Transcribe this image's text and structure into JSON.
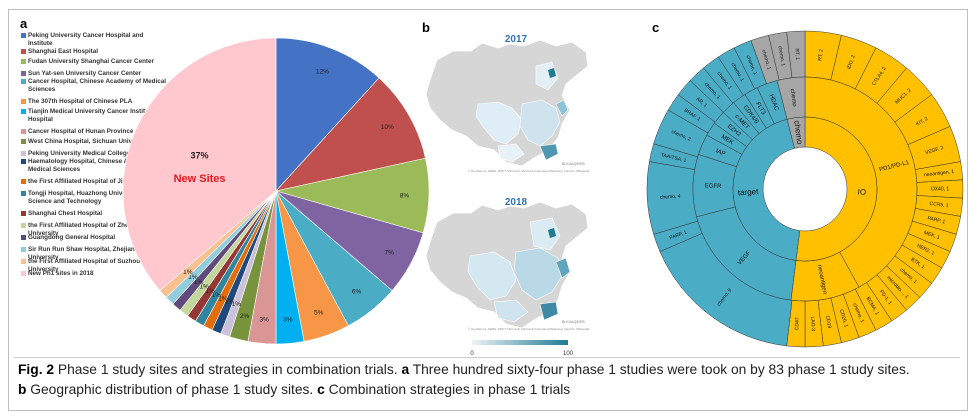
{
  "panels": {
    "a": "a",
    "b": "b",
    "c": "c"
  },
  "panel_a": {
    "legend": [
      {
        "label": "Peking University Cancer Hospital and Institute",
        "color": "#4472c4"
      },
      {
        "label": "Shanghai East Hospital",
        "color": "#c0504d"
      },
      {
        "label": "Fudan University Shanghai Cancer Center",
        "color": "#9bbb59"
      },
      {
        "label": "Sun Yat-sen University Cancer Center",
        "color": "#8064a2"
      },
      {
        "label": "Cancer Hospital, Chinese Academy of Medical Sciences",
        "color": "#4bacc6"
      },
      {
        "label": "The 307th Hospital of Chinese PLA",
        "color": "#f79646"
      },
      {
        "label": "Tianjin Medical University Cancer Institute and Hospital",
        "color": "#00b0f0"
      },
      {
        "label": "Cancer Hospital of Hunan Province",
        "color": "#d99694"
      },
      {
        "label": "West China Hospital, Sichuan University",
        "color": "#77933c"
      },
      {
        "label": "Peking University Medical College Hospital",
        "color": "#ccc1da"
      },
      {
        "label": "Haematology Hospital, Chinese Academy of Medical Sciences",
        "color": "#1f497d"
      },
      {
        "label": "the First Affiliated Hospital of Jilin University",
        "color": "#e46c0a"
      },
      {
        "label": "Tongji Hospital, Huazhong University of Science and Technology",
        "color": "#31859c"
      },
      {
        "label": "Shanghai Chest Hospital",
        "color": "#953734"
      },
      {
        "label": "the First Affiliated Hospital of Zhejiang University",
        "color": "#c3d69b"
      },
      {
        "label": "Guangdong General Hospital",
        "color": "#604a7b"
      },
      {
        "label": "Sir Run Run Shaw Hospital, Zhejiang University",
        "color": "#92cddc"
      },
      {
        "label": "the First Affiliated Hospital of Suzhou University",
        "color": "#fac08f"
      },
      {
        "label": "New Ph1 sites in 2018",
        "color": "#ffc7ce"
      }
    ],
    "chart_data": {
      "type": "pie",
      "title": "",
      "slices": [
        {
          "label": "Peking University Cancer Hospital and Institute",
          "value": 12,
          "text": "12%",
          "color": "#4472c4"
        },
        {
          "label": "Shanghai East Hospital",
          "value": 10,
          "text": "10%",
          "color": "#c0504d"
        },
        {
          "label": "Fudan University Shanghai Cancer Center",
          "value": 8,
          "text": "8%",
          "color": "#9bbb59"
        },
        {
          "label": "Sun Yat-sen University Cancer Center",
          "value": 7,
          "text": "7%",
          "color": "#8064a2"
        },
        {
          "label": "Cancer Hospital, Chinese Academy of Medical Sciences",
          "value": 6,
          "text": "6%",
          "color": "#4bacc6"
        },
        {
          "label": "The 307th Hospital of Chinese PLA",
          "value": 5,
          "text": "5%",
          "color": "#f79646"
        },
        {
          "label": "Tianjin Medical University Cancer Institute and Hospital",
          "value": 3,
          "text": "3%",
          "color": "#00b0f0"
        },
        {
          "label": "Cancer Hospital of Hunan Province",
          "value": 3,
          "text": "3%",
          "color": "#d99694"
        },
        {
          "label": "West China Hospital, Sichuan University",
          "value": 2,
          "text": "2%",
          "color": "#77933c"
        },
        {
          "label": "Peking University Medical College Hospital",
          "value": 1,
          "text": "1%",
          "color": "#ccc1da"
        },
        {
          "label": "Haematology Hospital, Chinese Academy of Medical Sciences",
          "value": 1,
          "text": "1%",
          "color": "#1f497d"
        },
        {
          "label": "the First Affiliated Hospital of Jilin University",
          "value": 1,
          "text": "1%",
          "color": "#e46c0a"
        },
        {
          "label": "Tongji Hospital, Huazhong University of Science and Technology",
          "value": 1,
          "text": "1%",
          "color": "#31859c"
        },
        {
          "label": "Shanghai Chest Hospital",
          "value": 1,
          "text": "1%",
          "color": "#953734"
        },
        {
          "label": "the First Affiliated Hospital of Zhejiang University",
          "value": 1,
          "text": "1%",
          "color": "#c3d69b"
        },
        {
          "label": "Guangdong General Hospital",
          "value": 1,
          "text": "1%",
          "color": "#604a7b"
        },
        {
          "label": "Sir Run Run Shaw Hospital, Zhejiang University",
          "value": 1,
          "text": "1%",
          "color": "#92cddc"
        },
        {
          "label": "the First Affiliated Hospital of Suzhou University",
          "value": 1,
          "text": "1%",
          "color": "#fac08f"
        },
        {
          "label": "New Ph1 sites in 2018",
          "value": 37,
          "text": "37%",
          "color": "#ffc7ce"
        }
      ],
      "annotation": "New Sites",
      "annotation_color": "#e31a1c"
    }
  },
  "panel_b": {
    "year_top": "2017",
    "year_bottom": "2018",
    "brand_top": "BLKUAQ90EB",
    "brand_bottom": "BLKUAQ90EB",
    "credit_top": "© GeoNames, HERE, MSFT, Microsoft, Microsoft Automated Marketing, Navinfo, Wikipedia",
    "credit_bottom": "© GeoNames, HERE, MSFT, Microsoft, Microsoft Automated Marketing, Navinfo, Wikipedia",
    "scale": {
      "min": "0",
      "max": "100",
      "color_low": "#eef3f6",
      "color_high": "#1f7a92"
    }
  },
  "panel_c": {
    "chart_data": {
      "type": "sunburst",
      "inner": [
        {
          "label": "IO",
          "value": 52,
          "color": "#ffc000"
        },
        {
          "label": "target",
          "value": 44,
          "color": "#4bacc6"
        },
        {
          "label": "chemo",
          "value": 4,
          "color": "#a6a6a6"
        }
      ],
      "middle": [
        {
          "label": "PD1/PD-L1",
          "value": 42,
          "color": "#ffc000"
        },
        {
          "label": "neoantigen",
          "value": 10,
          "color": "#ffc000"
        },
        {
          "label": "VEGF",
          "value": 19,
          "color": "#4bacc6"
        },
        {
          "label": "EGFR",
          "value": 9,
          "color": "#4bacc6"
        },
        {
          "label": "IAP",
          "value": 3,
          "color": "#4bacc6"
        },
        {
          "label": "MEK",
          "value": 2,
          "color": "#4bacc6"
        },
        {
          "label": "EZH2",
          "value": 2,
          "color": "#4bacc6"
        },
        {
          "label": "c-MET",
          "value": 2,
          "color": "#4bacc6"
        },
        {
          "label": "CDK4/6",
          "value": 2,
          "color": "#4bacc6"
        },
        {
          "label": "FLT3",
          "value": 2,
          "color": "#4bacc6"
        },
        {
          "label": "HDAC",
          "value": 3,
          "color": "#4bacc6"
        },
        {
          "label": "chemo",
          "value": 4,
          "color": "#a6a6a6"
        }
      ],
      "outer": [
        {
          "label": "RT, 2",
          "value": 2,
          "color": "#ffc000"
        },
        {
          "label": "IDO, 2",
          "value": 2,
          "color": "#ffc000"
        },
        {
          "label": "CTLA4, 2",
          "value": 2,
          "color": "#ffc000"
        },
        {
          "label": "MUC1, 2",
          "value": 2,
          "color": "#ffc000"
        },
        {
          "label": "KIT, 2",
          "value": 2,
          "color": "#ffc000"
        },
        {
          "label": "VEGF, 2",
          "value": 2,
          "color": "#ffc000"
        },
        {
          "label": "neoantigen, 1",
          "value": 1,
          "color": "#ffc000"
        },
        {
          "label": "OX40, 1",
          "value": 1,
          "color": "#ffc000"
        },
        {
          "label": "CCR5, 1",
          "value": 1,
          "color": "#ffc000"
        },
        {
          "label": "PARP, 1",
          "value": 1,
          "color": "#ffc000"
        },
        {
          "label": "MEK, 1",
          "value": 1,
          "color": "#ffc000"
        },
        {
          "label": "HER2, 1",
          "value": 1,
          "color": "#ffc000"
        },
        {
          "label": "BTK, 1",
          "value": 1,
          "color": "#ffc000"
        },
        {
          "label": "chemo, 1",
          "value": 1,
          "color": "#ffc000"
        },
        {
          "label": "microbio..., 1",
          "value": 1,
          "color": "#ffc000"
        },
        {
          "label": "PD-1, 1",
          "value": 1,
          "color": "#ffc000"
        },
        {
          "label": "BCMA, 1",
          "value": 1,
          "color": "#ffc000"
        },
        {
          "label": "chemo, 1",
          "value": 1,
          "color": "#ffc000"
        },
        {
          "label": "CD20, 1",
          "value": 1,
          "color": "#ffc000"
        },
        {
          "label": "CD19",
          "value": 1,
          "color": "#ffc000"
        },
        {
          "label": "LAG-3",
          "value": 1,
          "color": "#ffc000"
        },
        {
          "label": "CD47",
          "value": 1,
          "color": "#ffc000"
        },
        {
          "label": "chemo, 9",
          "value": 9,
          "color": "#4bacc6"
        },
        {
          "label": "PARP, 1",
          "value": 1,
          "color": "#4bacc6"
        },
        {
          "label": "chemo, 4",
          "value": 4,
          "color": "#4bacc6"
        },
        {
          "label": "TAA/TSA, 1",
          "value": 1,
          "color": "#4bacc6"
        },
        {
          "label": "chemo, 2",
          "value": 2,
          "color": "#4bacc6"
        },
        {
          "label": "BRAF, 1",
          "value": 1,
          "color": "#4bacc6"
        },
        {
          "label": "AR, 1",
          "value": 1,
          "color": "#4bacc6"
        },
        {
          "label": "chemo, 1",
          "value": 1,
          "color": "#4bacc6"
        },
        {
          "label": "chemo, 1",
          "value": 1,
          "color": "#4bacc6"
        },
        {
          "label": "chemo, 1",
          "value": 1,
          "color": "#4bacc6"
        },
        {
          "label": "chemo, 1",
          "value": 1,
          "color": "#4bacc6"
        },
        {
          "label": "chemo, 1",
          "value": 1,
          "color": "#a6a6a6"
        },
        {
          "label": "chemo, 1",
          "value": 1,
          "color": "#a6a6a6"
        },
        {
          "label": "RT, 1",
          "value": 1,
          "color": "#a6a6a6"
        }
      ]
    }
  },
  "caption": {
    "fig": "Fig. 2",
    "t1": " Phase 1 study sites and strategies in combination trials. ",
    "a": "a",
    "t2": " Three hundred sixty-four phase 1 studies were took on by 83 phase 1 study sites.",
    "b": "b",
    "t3": " Geographic distribution of phase 1 study sites. ",
    "c": "c",
    "t4": " Combination strategies in phase 1 trials"
  }
}
